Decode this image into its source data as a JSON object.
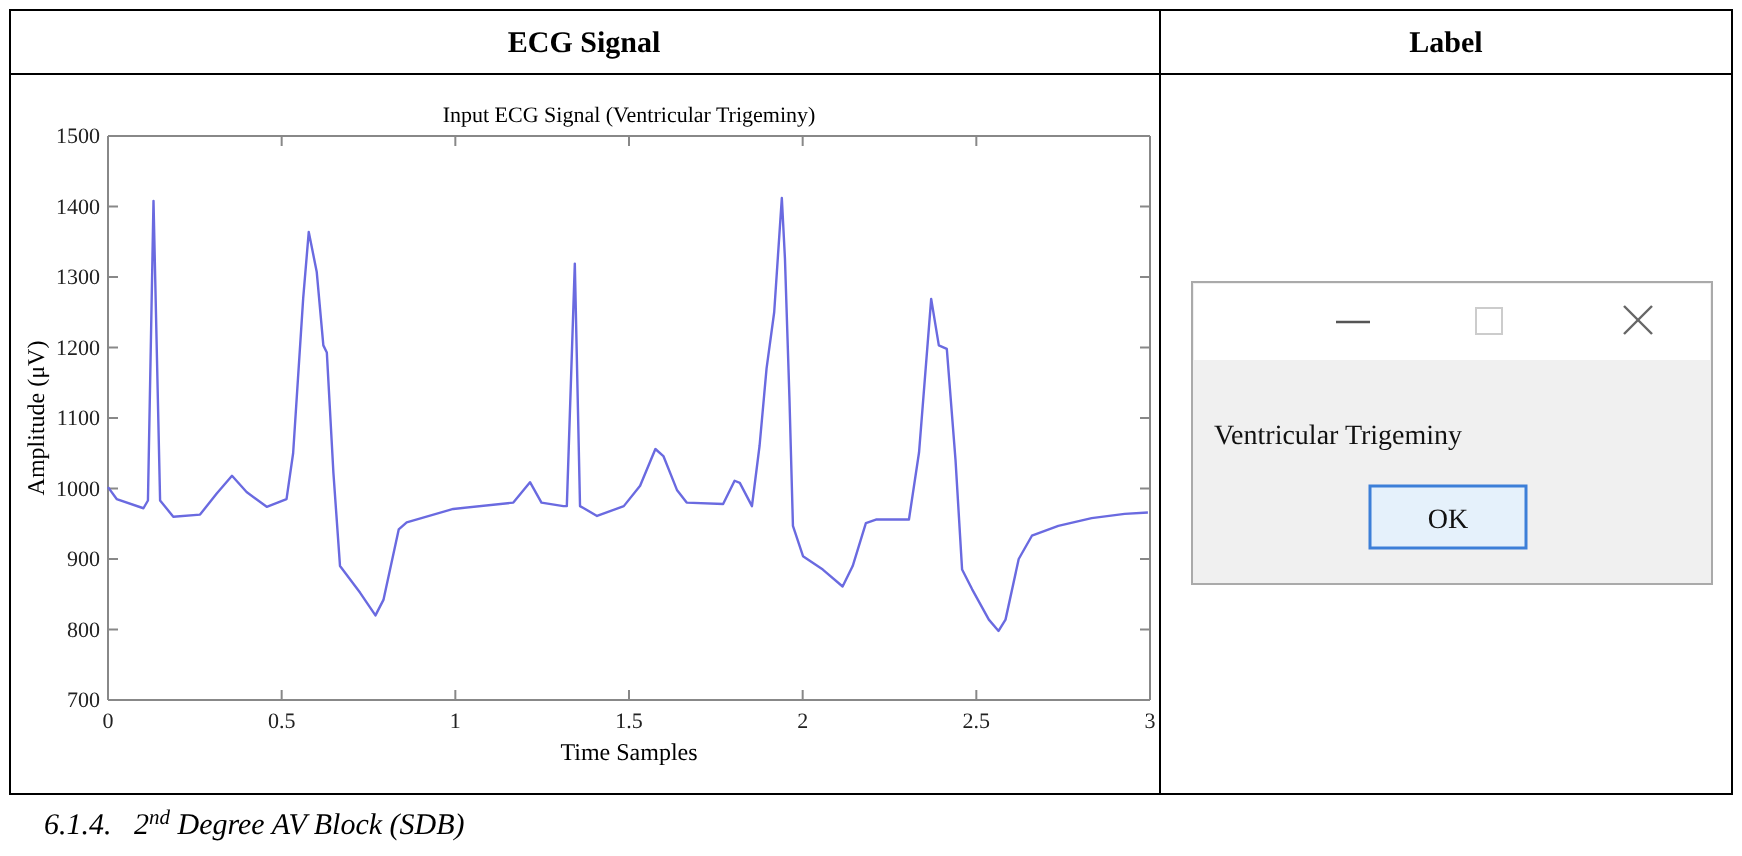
{
  "chart_data": {
    "type": "line",
    "title": "Input ECG Signal  (Ventricular Trigeminy)",
    "xlabel": "Time Samples",
    "ylabel": "Amplitude (μV)",
    "annotations": [
      "6.1.4.   2$^{nd}$ Degree AV Block (SDB)",
      "Ventricular Trigeminy",
      "OK",
      "ECG Signal",
      "Label"
    ],
    "xlim": [
      0,
      3
    ],
    "ylim": [
      700,
      1500
    ],
    "xticks": [
      0,
      0.5,
      1,
      1.5,
      2,
      2.5,
      3
    ],
    "yticks": [
      700,
      800,
      900,
      1000,
      1100,
      1200,
      1300,
      1400,
      1500
    ],
    "grid": false,
    "marker": "none",
    "line_style": "solid",
    "series": [
      {
        "color": "#6a6ae0",
        "x": [
          0,
          0.025,
          0.102,
          0.115,
          0.131,
          0.15,
          0.188,
          0.265,
          0.313,
          0.357,
          0.399,
          0.457,
          0.514,
          0.533,
          0.562,
          0.578,
          0.601,
          0.62,
          0.63,
          0.649,
          0.668,
          0.726,
          0.77,
          0.793,
          0.837,
          0.86,
          0.994,
          1.167,
          1.215,
          1.248,
          1.311,
          1.321,
          1.344,
          1.359,
          1.37,
          1.408,
          1.485,
          1.532,
          1.576,
          1.599,
          1.638,
          1.666,
          1.771,
          1.804,
          1.819,
          1.854,
          1.876,
          1.896,
          1.918,
          1.94,
          1.949,
          1.962,
          1.972,
          2.001,
          2.058,
          2.115,
          2.144,
          2.182,
          2.211,
          2.306,
          2.335,
          2.37,
          2.392,
          2.415,
          2.44,
          2.459,
          2.488,
          2.536,
          2.564,
          2.584,
          2.622,
          2.66,
          2.736,
          2.832,
          2.927,
          2.994
        ],
        "values": [
          1002,
          985,
          972,
          983,
          1408,
          983,
          960,
          963,
          993,
          1018,
          995,
          974,
          985,
          1050,
          1270,
          1364,
          1307,
          1203,
          1193,
          1022,
          890,
          852,
          820,
          842,
          942,
          952,
          971,
          980,
          1009,
          980,
          975,
          975,
          1319,
          975,
          972,
          961,
          975,
          1004,
          1056,
          1046,
          998,
          980,
          978,
          1011,
          1008,
          975,
          1061,
          1170,
          1250,
          1412,
          1326,
          1127,
          947,
          904,
          885,
          861,
          890,
          951,
          956,
          956,
          1051,
          1269,
          1203,
          1198,
          1041,
          885,
          857,
          814,
          798,
          814,
          900,
          933,
          947,
          958,
          964,
          966
        ]
      }
    ]
  }
}
